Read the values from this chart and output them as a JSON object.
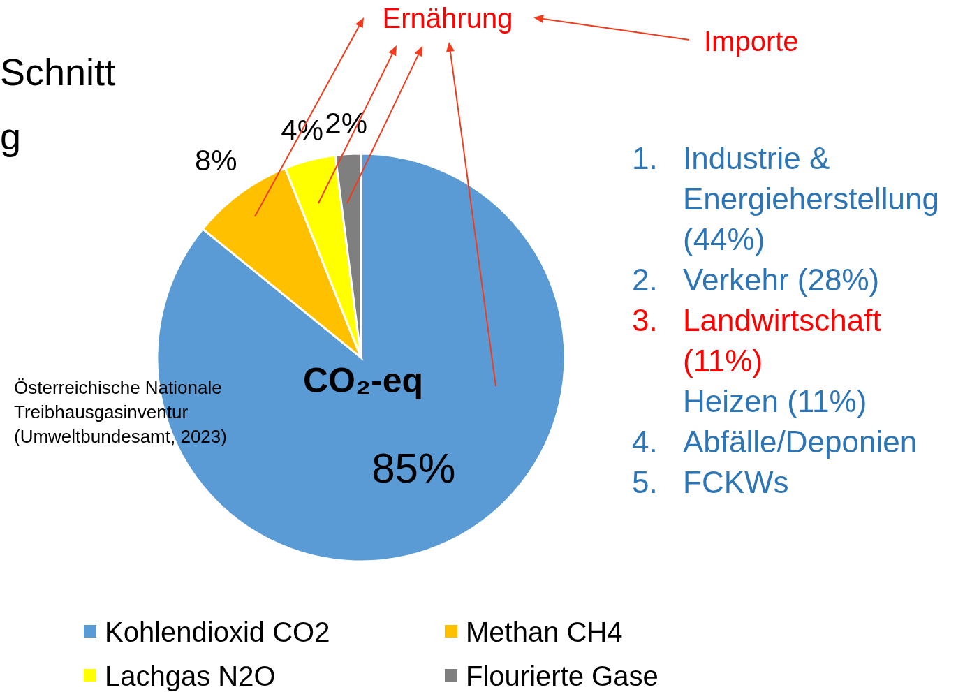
{
  "chart_data": {
    "type": "pie",
    "title": "CO₂-eq",
    "categories": [
      "Kohlendioxid CO2",
      "Methan CH4",
      "Lachgas N2O",
      "Flourierte Gase"
    ],
    "values": [
      85,
      8,
      4,
      2
    ],
    "value_labels": [
      "85%",
      "8%",
      "4%",
      "2%"
    ],
    "colors": [
      "#5b9bd5",
      "#ffc000",
      "#ffff00",
      "#7f7f7f"
    ],
    "legend": "bottom",
    "annotations": [
      "Ernährung",
      "Importe",
      "Schnitt",
      "g",
      "1. Industrie & Energieherstellung (44%)",
      "2. Verkehr (28%)",
      "3. Landwirtschaft (11%)",
      "Heizen (11%)",
      "4. Abfälle/Deponien",
      "5. FCKWs",
      "Österreichische Nationale Treibhausgasinventur (Umweltbundesamt, 2023)"
    ]
  }
}
